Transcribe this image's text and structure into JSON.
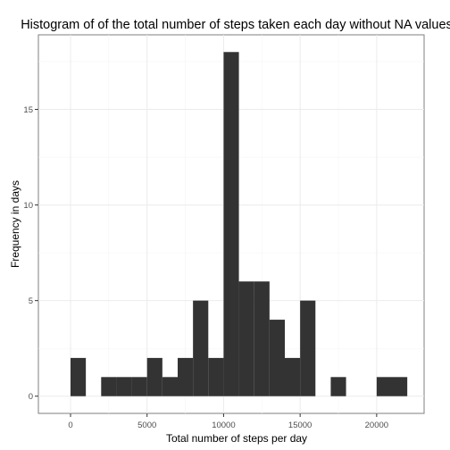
{
  "chart_data": {
    "type": "bar",
    "title": "Histogram of of the total number of steps taken each day without NA values",
    "xlabel": "Total number of steps per day",
    "ylabel": "Frequency in days",
    "binwidth": 1000,
    "bins": [
      {
        "x0": 0,
        "x1": 1000,
        "count": 2
      },
      {
        "x0": 1000,
        "x1": 2000,
        "count": 0
      },
      {
        "x0": 2000,
        "x1": 3000,
        "count": 1
      },
      {
        "x0": 3000,
        "x1": 4000,
        "count": 1
      },
      {
        "x0": 4000,
        "x1": 5000,
        "count": 1
      },
      {
        "x0": 5000,
        "x1": 6000,
        "count": 2
      },
      {
        "x0": 6000,
        "x1": 7000,
        "count": 1
      },
      {
        "x0": 7000,
        "x1": 8000,
        "count": 2
      },
      {
        "x0": 8000,
        "x1": 9000,
        "count": 5
      },
      {
        "x0": 9000,
        "x1": 10000,
        "count": 2
      },
      {
        "x0": 10000,
        "x1": 11000,
        "count": 18
      },
      {
        "x0": 11000,
        "x1": 12000,
        "count": 6
      },
      {
        "x0": 12000,
        "x1": 13000,
        "count": 6
      },
      {
        "x0": 13000,
        "x1": 14000,
        "count": 4
      },
      {
        "x0": 14000,
        "x1": 15000,
        "count": 2
      },
      {
        "x0": 15000,
        "x1": 16000,
        "count": 5
      },
      {
        "x0": 16000,
        "x1": 17000,
        "count": 0
      },
      {
        "x0": 17000,
        "x1": 18000,
        "count": 1
      },
      {
        "x0": 18000,
        "x1": 19000,
        "count": 0
      },
      {
        "x0": 19000,
        "x1": 20000,
        "count": 0
      },
      {
        "x0": 20000,
        "x1": 21000,
        "count": 1
      },
      {
        "x0": 21000,
        "x1": 22000,
        "count": 1
      }
    ],
    "xlim": [
      -2100,
      23100
    ],
    "ylim": [
      -0.9,
      18.9
    ],
    "x_ticks": [
      0,
      5000,
      10000,
      15000,
      20000
    ],
    "x_tick_labels": [
      "0",
      "5000",
      "10000",
      "15000",
      "20000"
    ],
    "y_ticks": [
      0,
      5,
      10,
      15
    ],
    "y_tick_labels": [
      "0",
      "5",
      "10",
      "15"
    ],
    "bar_color": "#333333",
    "grid": true,
    "legend": "none"
  }
}
